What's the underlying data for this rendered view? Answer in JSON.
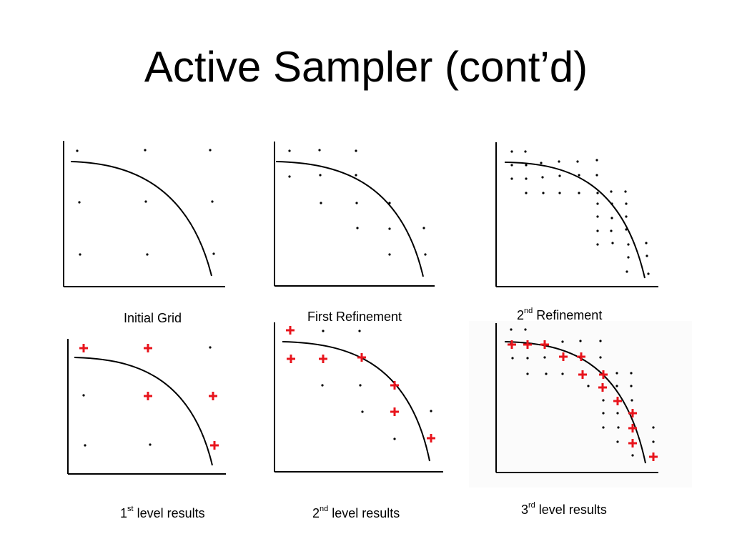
{
  "slide": {
    "title": "Active Sampler (cont’d)"
  },
  "captions": {
    "initial_grid": "Initial Grid",
    "first_refinement": "First Refinement",
    "second_refinement": {
      "num": "2",
      "sup": "nd",
      "rest": " Refinement"
    },
    "level1": {
      "num": "1",
      "sup": "st",
      "rest": " level results"
    },
    "level2": {
      "num": "2",
      "sup": "nd",
      "rest": " level results"
    },
    "level3": {
      "num": "3",
      "sup": "rd",
      "rest": " level results"
    }
  },
  "colors": {
    "axis": "#000000",
    "dot": "#000000",
    "plus": "#e8141c"
  },
  "panels": [
    {
      "id": "initial-grid",
      "dots": [
        [
          108,
          211
        ],
        [
          203,
          210
        ],
        [
          294,
          210
        ],
        [
          111,
          283
        ],
        [
          204,
          282
        ],
        [
          297,
          282
        ],
        [
          112,
          356
        ],
        [
          206,
          356
        ],
        [
          299,
          355
        ]
      ],
      "pluses": []
    },
    {
      "id": "first-refinement",
      "dots": [
        [
          405,
          211
        ],
        [
          447,
          210
        ],
        [
          498,
          211
        ],
        [
          405,
          247
        ],
        [
          448,
          245
        ],
        [
          498,
          245
        ],
        [
          449,
          284
        ],
        [
          499,
          284
        ],
        [
          545,
          284
        ],
        [
          500,
          319
        ],
        [
          545,
          320
        ],
        [
          593,
          319
        ],
        [
          545,
          356
        ],
        [
          595,
          356
        ]
      ],
      "pluses": []
    },
    {
      "id": "second-refinement",
      "dots": [
        [
          716,
          212
        ],
        [
          735,
          212
        ],
        [
          716,
          231
        ],
        [
          736,
          231
        ],
        [
          757,
          228
        ],
        [
          782,
          226
        ],
        [
          808,
          226
        ],
        [
          835,
          224
        ],
        [
          716,
          250
        ],
        [
          736,
          250
        ],
        [
          759,
          248
        ],
        [
          783,
          246
        ],
        [
          810,
          245
        ],
        [
          835,
          245
        ],
        [
          736,
          270
        ],
        [
          760,
          270
        ],
        [
          783,
          270
        ],
        [
          810,
          270
        ],
        [
          836,
          270
        ],
        [
          855,
          268
        ],
        [
          875,
          268
        ],
        [
          836,
          285
        ],
        [
          856,
          285
        ],
        [
          876,
          285
        ],
        [
          836,
          303
        ],
        [
          856,
          305
        ],
        [
          876,
          303
        ],
        [
          836,
          323
        ],
        [
          855,
          323
        ],
        [
          876,
          321
        ],
        [
          836,
          342
        ],
        [
          857,
          340
        ],
        [
          879,
          342
        ],
        [
          904,
          340
        ],
        [
          879,
          360
        ],
        [
          905,
          358
        ],
        [
          877,
          380
        ],
        [
          907,
          383
        ]
      ],
      "pluses": []
    },
    {
      "id": "level1-results",
      "dots": [
        [
          294,
          486
        ],
        [
          117,
          553
        ],
        [
          119,
          623
        ],
        [
          210,
          622
        ]
      ],
      "pluses": [
        [
          117,
          487
        ],
        [
          207,
          487
        ],
        [
          207,
          554
        ],
        [
          298,
          554
        ],
        [
          300,
          623
        ]
      ]
    },
    {
      "id": "level2-results",
      "dots": [
        [
          452,
          463
        ],
        [
          503,
          463
        ],
        [
          451,
          539
        ],
        [
          504,
          539
        ],
        [
          507,
          576
        ],
        [
          603,
          575
        ],
        [
          552,
          614
        ]
      ],
      "pluses": [
        [
          406,
          462
        ],
        [
          407,
          502
        ],
        [
          452,
          502
        ],
        [
          506,
          500
        ],
        [
          552,
          539
        ],
        [
          552,
          576
        ],
        [
          603,
          613
        ]
      ]
    },
    {
      "id": "level3-results",
      "dots": [
        [
          715,
          461
        ],
        [
          735,
          461
        ],
        [
          715,
          481
        ],
        [
          735,
          481
        ],
        [
          787,
          478
        ],
        [
          812,
          477
        ],
        [
          840,
          477
        ],
        [
          717,
          501
        ],
        [
          738,
          501
        ],
        [
          762,
          500
        ],
        [
          840,
          500
        ],
        [
          738,
          523
        ],
        [
          764,
          523
        ],
        [
          787,
          523
        ],
        [
          863,
          522
        ],
        [
          883,
          522
        ],
        [
          823,
          540
        ],
        [
          863,
          540
        ],
        [
          883,
          540
        ],
        [
          844,
          560
        ],
        [
          884,
          560
        ],
        [
          844,
          578
        ],
        [
          864,
          578
        ],
        [
          844,
          598
        ],
        [
          865,
          598
        ],
        [
          914,
          598
        ],
        [
          864,
          618
        ],
        [
          914,
          618
        ],
        [
          885,
          637
        ]
      ],
      "pluses": [
        [
          716,
          482
        ],
        [
          738,
          482
        ],
        [
          762,
          482
        ],
        [
          788,
          499
        ],
        [
          813,
          499
        ],
        [
          815,
          524
        ],
        [
          844,
          524
        ],
        [
          843,
          542
        ],
        [
          864,
          561
        ],
        [
          885,
          578
        ],
        [
          885,
          599
        ],
        [
          885,
          620
        ],
        [
          914,
          639
        ]
      ]
    }
  ]
}
